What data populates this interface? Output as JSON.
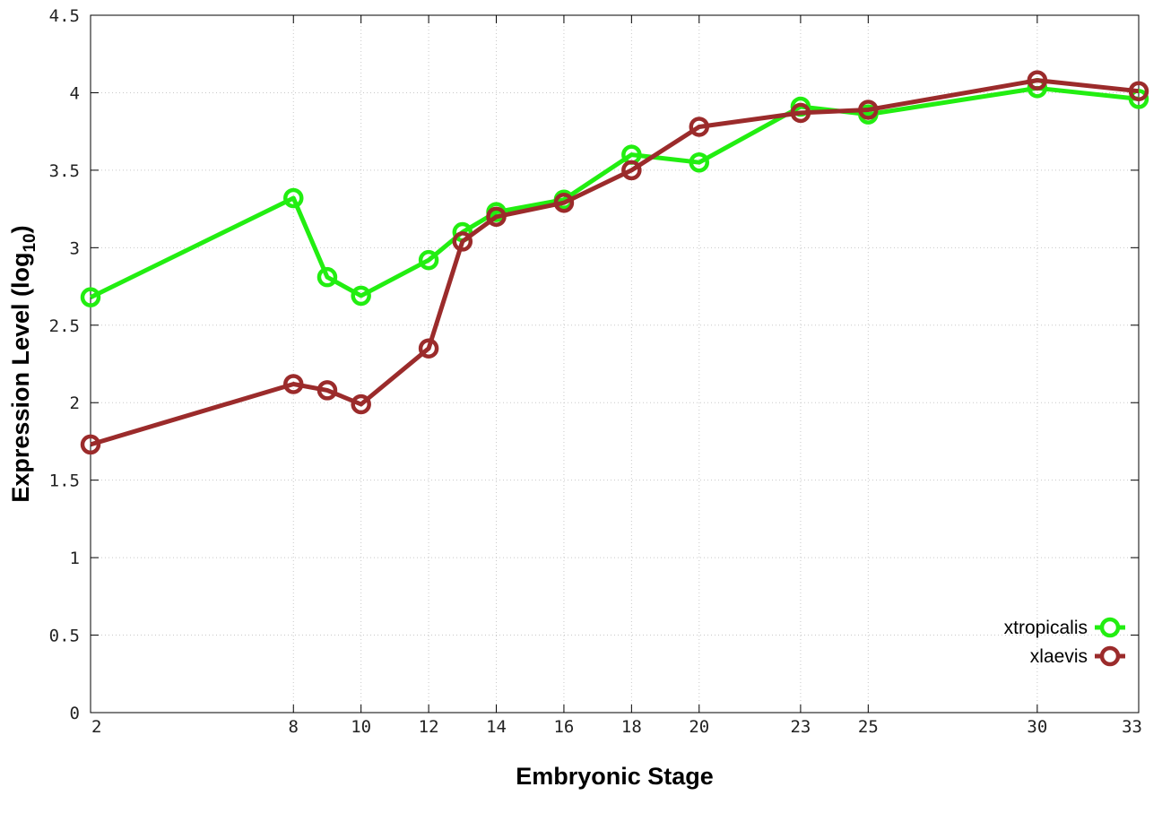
{
  "chart_data": {
    "type": "line",
    "xlabel": "Embryonic Stage",
    "ylabel": "Expression Level (log",
    "ylabel_sub": "10",
    "ylabel_end": ")",
    "x": [
      "2",
      "8",
      "9",
      "10",
      "12",
      "13",
      "14",
      "16",
      "18",
      "20",
      "23",
      "25",
      "30",
      "33"
    ],
    "xtick_labels": [
      "2",
      "8",
      "10",
      "12",
      "14",
      "16",
      "18",
      "20",
      "23",
      "25",
      "30",
      "33"
    ],
    "ylim": [
      0,
      4.5
    ],
    "yticks": [
      "0",
      "0.5",
      "1",
      "1.5",
      "2",
      "2.5",
      "3",
      "3.5",
      "4",
      "4.5"
    ],
    "grid": true,
    "legend_position": "bottom-right",
    "series": [
      {
        "name": "xtropicalis",
        "color": "#22ee11",
        "values": [
          2.68,
          3.32,
          2.81,
          2.69,
          2.92,
          3.1,
          3.23,
          3.31,
          3.6,
          3.55,
          3.91,
          3.86,
          4.03,
          3.96
        ]
      },
      {
        "name": "xlaevis",
        "color": "#9b2b2b",
        "values": [
          1.73,
          2.12,
          2.08,
          1.99,
          2.35,
          3.04,
          3.2,
          3.29,
          3.5,
          3.78,
          3.87,
          3.89,
          4.08,
          4.01
        ]
      }
    ]
  }
}
